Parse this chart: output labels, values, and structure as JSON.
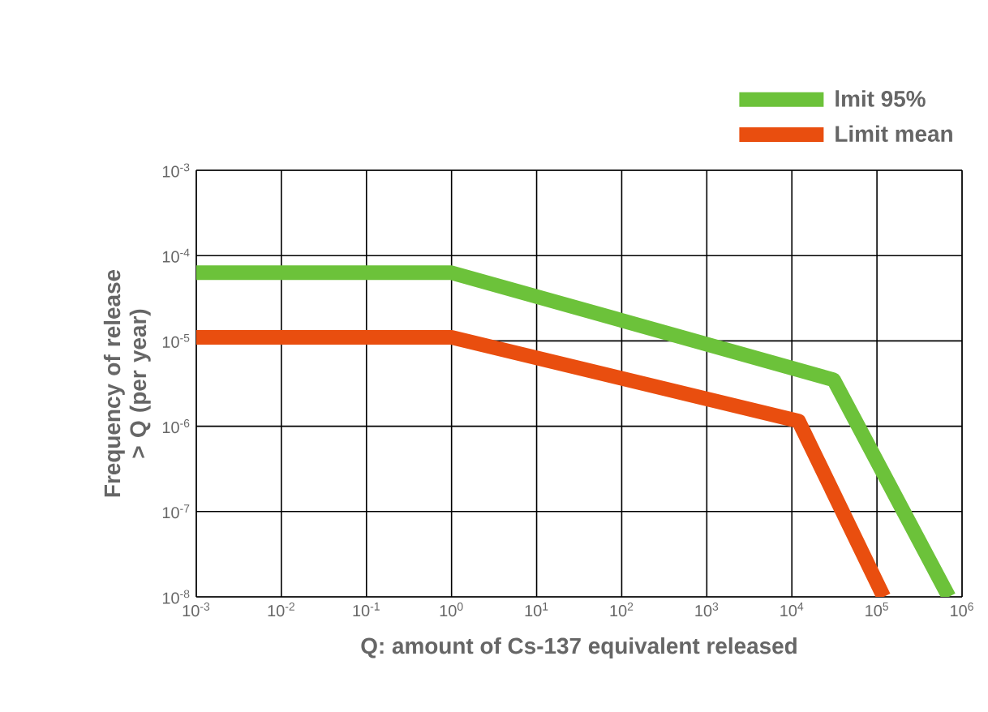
{
  "chart_data": {
    "type": "line",
    "xlabel": "Q:  amount of Cs-137 equivalent released",
    "ylabel": "Frequency of release > Q (per year)",
    "log": "xy",
    "grid": true,
    "legend": "top right",
    "xlim": [
      0.001,
      1000000
    ],
    "ylim": [
      1e-08,
      0.001
    ],
    "xticks": [
      {
        "value": 0.001,
        "label": "10$^{-3}$"
      },
      {
        "value": 0.01,
        "label": "10$^{-2}$"
      },
      {
        "value": 0.1,
        "label": "10$^{-1}$"
      },
      {
        "value": 1,
        "label": "10$^{0}$"
      },
      {
        "value": 10,
        "label": "10$^{1}$"
      },
      {
        "value": 100,
        "label": "10$^{2}$"
      },
      {
        "value": 1000,
        "label": "10$^{3}$"
      },
      {
        "value": 10000,
        "label": "10$^{4}$"
      },
      {
        "value": 100000,
        "label": "10$^{5}$"
      },
      {
        "value": 1000000,
        "label": "10$^{6}$"
      }
    ],
    "yticks": [
      {
        "value": 1e-08,
        "label": "10$^{-8}$"
      },
      {
        "value": 1e-07,
        "label": "10$^{-7}$"
      },
      {
        "value": 1e-06,
        "label": "10$^{-6}$"
      },
      {
        "value": 1e-05,
        "label": "10$^{-5}$"
      },
      {
        "value": 0.0001,
        "label": "10$^{-4}$"
      },
      {
        "value": 0.001,
        "label": "10$^{-3}$"
      }
    ],
    "series": [
      {
        "name": "lmit 95%",
        "color": "#6cc23a",
        "x": [
          0.001,
          1,
          31000,
          700000
        ],
        "values": [
          6.3e-05,
          6.3e-05,
          3.5e-06,
          1e-08
        ]
      },
      {
        "name": "Limit mean",
        "color": "#e94e0f",
        "x": [
          0.001,
          1,
          12000,
          120000
        ],
        "values": [
          1.1e-05,
          1.1e-05,
          1.15e-06,
          1e-08
        ]
      }
    ]
  }
}
